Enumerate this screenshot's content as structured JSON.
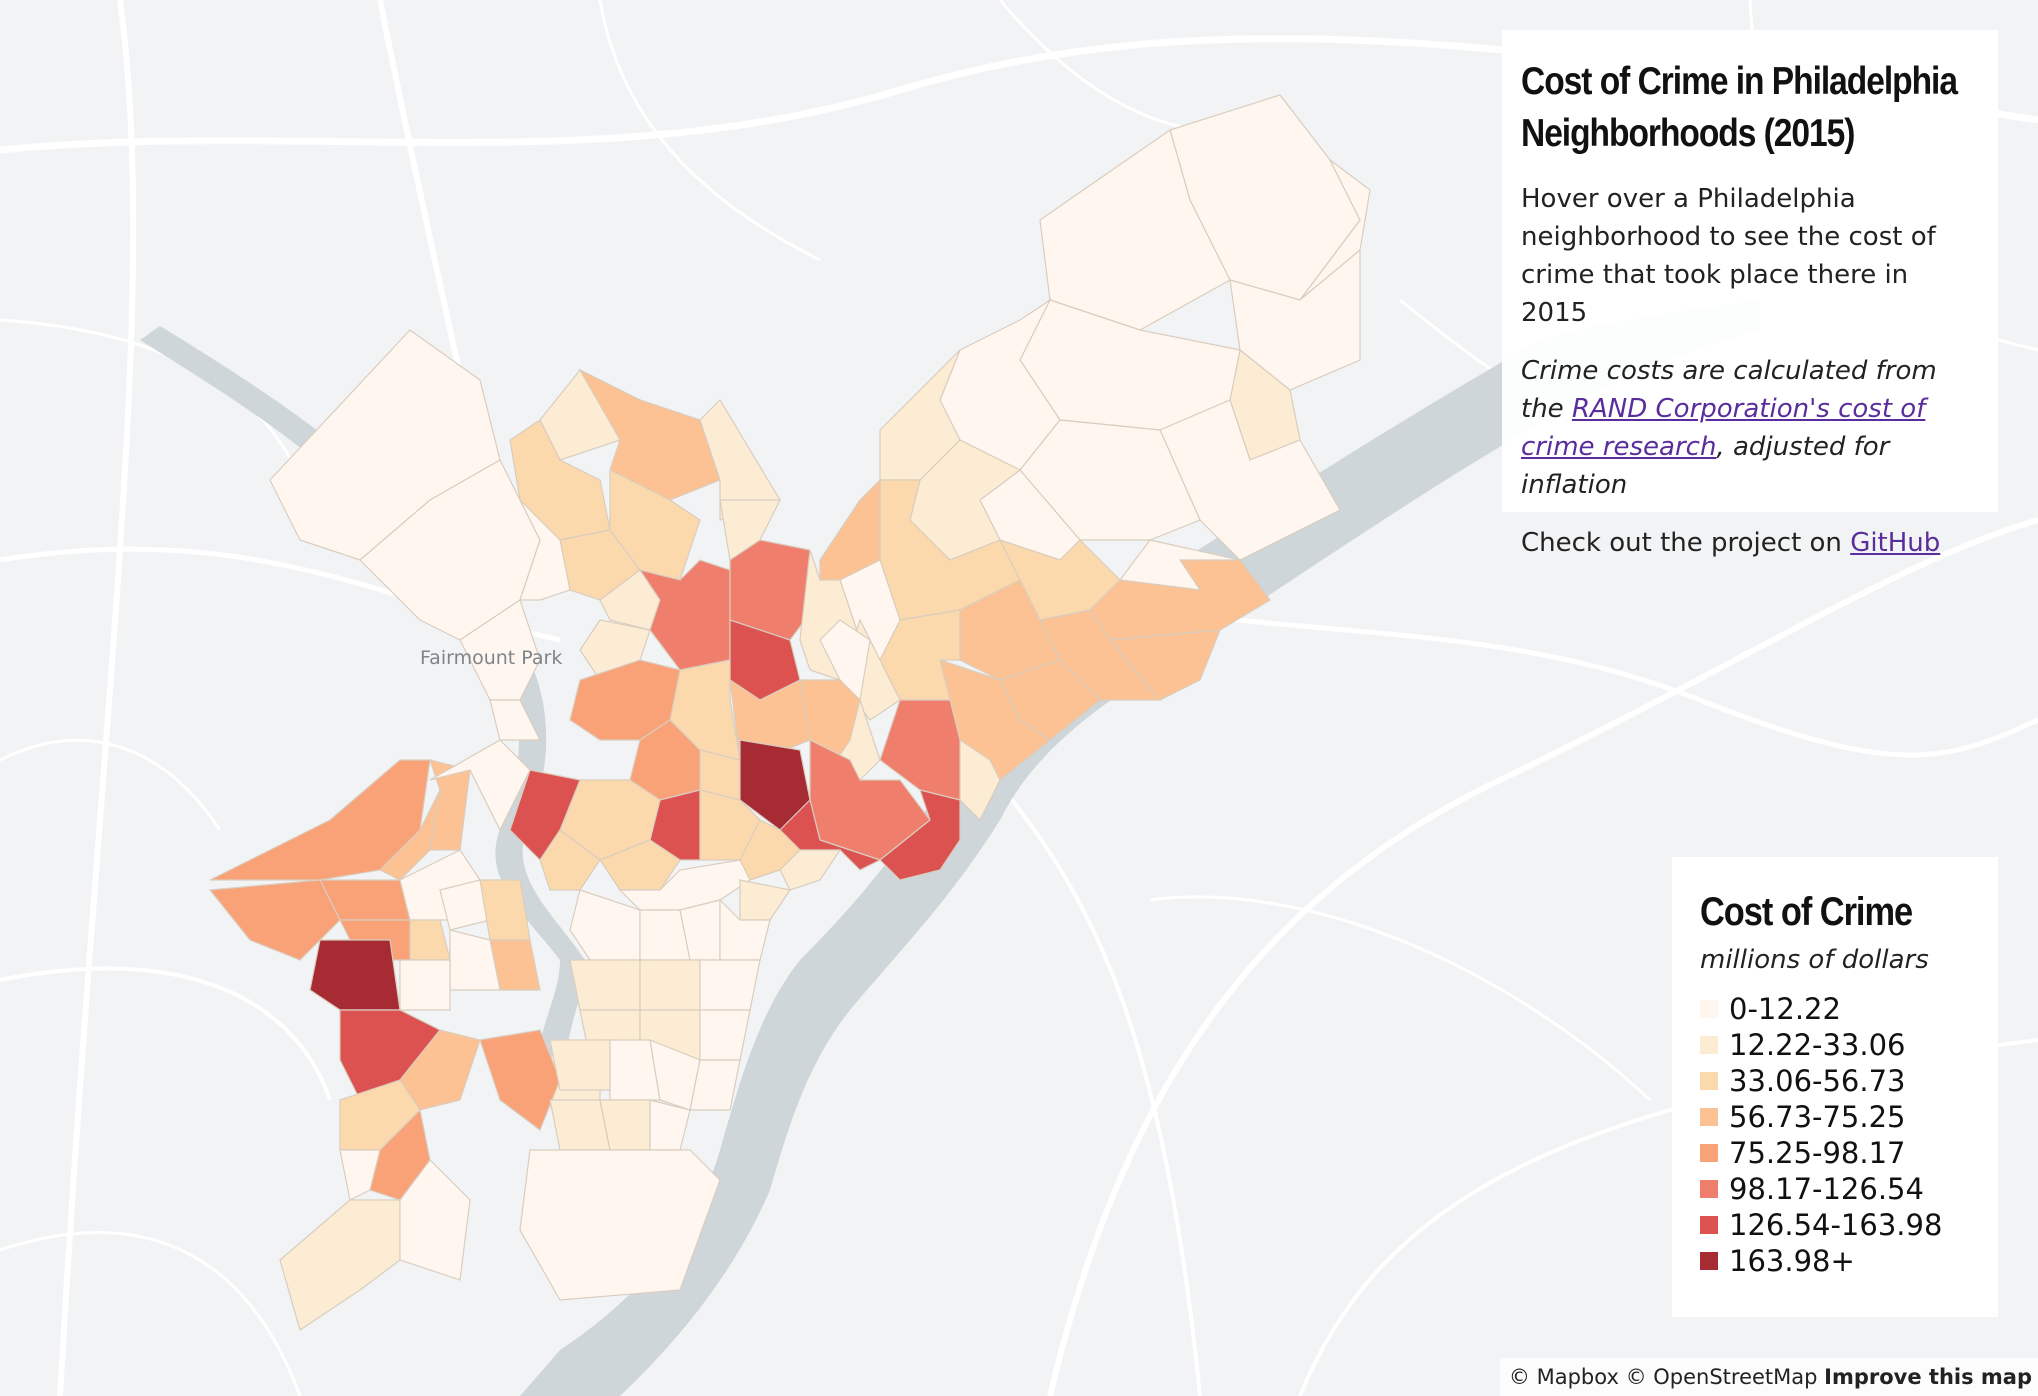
{
  "info": {
    "title": "Cost of Crime in Philadelphia Neighborhoods (2015)",
    "description": "Hover over a Philadelphia neighborhood to see the cost of crime that took place there in 2015",
    "method_prefix": "Crime costs are calculated from the ",
    "method_link": "RAND Corporation's cost of crime research",
    "method_suffix": ", adjusted for inflation",
    "github_prefix": "Check out the project on ",
    "github_link": "GitHub"
  },
  "legend": {
    "title": "Cost of Crime",
    "subtitle": "millions of dollars",
    "items": [
      {
        "label": "0-12.22",
        "color": "#fff7ef"
      },
      {
        "label": "12.22-33.06",
        "color": "#fdecd4"
      },
      {
        "label": "33.06-56.73",
        "color": "#fcd9ad"
      },
      {
        "label": "56.73-75.25",
        "color": "#fcc293"
      },
      {
        "label": "75.25-98.17",
        "color": "#f9a278"
      },
      {
        "label": "98.17-126.54",
        "color": "#ef7f6c"
      },
      {
        "label": "126.54-163.98",
        "color": "#db5250"
      },
      {
        "label": "163.98+",
        "color": "#a62b33"
      }
    ]
  },
  "map": {
    "place_label": "Fairmount Park",
    "colors": {
      "background": "#f2f3f4",
      "water": "#cfd6da",
      "road": "#ffffff"
    }
  },
  "attribution": {
    "mapbox": "© Mapbox",
    "osm": "© OpenStreetMap",
    "improve": "Improve this map"
  }
}
